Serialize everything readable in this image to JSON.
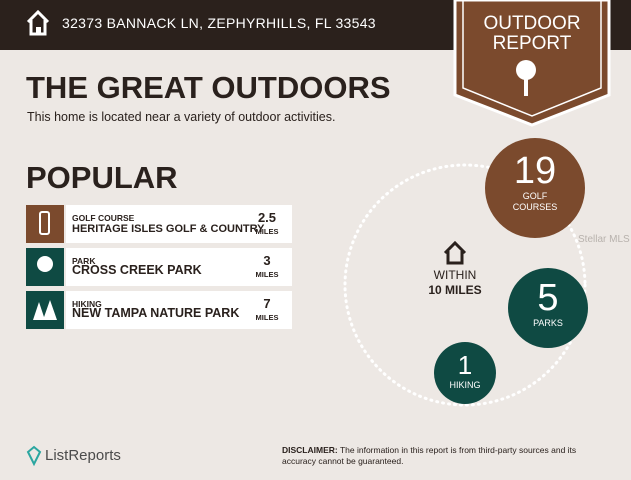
{
  "header": {
    "address": "32373 BANNACK LN, ZEPHYRHILLS, FL 33543"
  },
  "badge": {
    "line1": "OUTDOOR",
    "line2": "REPORT"
  },
  "section": {
    "title": "THE GREAT OUTDOORS",
    "subtitle": "This home is located near a variety of outdoor activities."
  },
  "popular": {
    "title": "POPULAR",
    "items": [
      {
        "category": "GOLF COURSE",
        "name": "HERITAGE ISLES GOLF & COUNTRY",
        "distance": 2.5,
        "unit": "MILES"
      },
      {
        "category": "PARK",
        "name": "CROSS CREEK PARK",
        "distance": 3,
        "unit": "MILES"
      },
      {
        "category": "HIKING",
        "name": "NEW TAMPA NATURE PARK",
        "distance": 7,
        "unit": "MILES"
      }
    ]
  },
  "radius": {
    "label": "WITHIN",
    "distance": "10 MILES"
  },
  "counts": [
    {
      "value": 19,
      "label": "GOLF COURSES"
    },
    {
      "value": 5,
      "label": "PARKS"
    },
    {
      "value": 1,
      "label": "HIKING"
    }
  ],
  "watermark": "Stellar MLS",
  "footer": {
    "brand": "ListReports",
    "disclaimer_label": "DISCLAIMER:",
    "disclaimer": "The information in this report is from third-party sources and its accuracy cannot be guaranteed."
  }
}
